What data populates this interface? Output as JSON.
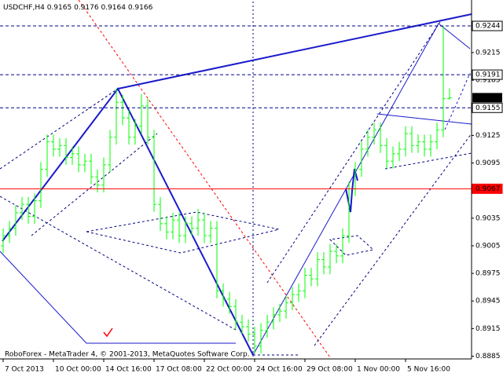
{
  "chart_data": {
    "type": "ohlc",
    "title": "USDCHF,H4",
    "footer": "RoboForex - MetaTrader 4, © 2001-2013, MetaQuotes Software Corp.",
    "color": "#00ff00",
    "open": [
      0.9005,
      0.9016,
      0.9024,
      0.9041,
      0.905,
      0.9037,
      0.9054,
      0.9088,
      0.9118,
      0.911,
      0.9114,
      0.9101,
      0.9105,
      0.9093,
      0.9097,
      0.908,
      0.9071,
      0.9093,
      0.9123,
      0.9161,
      0.9144,
      0.9123,
      0.9135,
      0.9157,
      0.9123,
      0.905,
      0.9029,
      0.902,
      0.9033,
      0.9016,
      0.9029,
      0.9024,
      0.9033,
      0.9016,
      0.9024,
      0.8956,
      0.8947,
      0.8939,
      0.8922,
      0.8917,
      0.8909,
      0.8896,
      0.8913,
      0.8922,
      0.893,
      0.8934,
      0.8943,
      0.8952,
      0.8956,
      0.8973,
      0.8969,
      0.899,
      0.8982,
      0.8999,
      0.8994,
      0.9016,
      0.9067,
      0.9088,
      0.911,
      0.9123,
      0.9131,
      0.9114,
      0.9097,
      0.9105,
      0.911,
      0.9127,
      0.9114,
      0.9118,
      0.911,
      0.9118,
      0.9131,
      0.9165
    ],
    "high": [
      0.9024,
      0.9032,
      0.9049,
      0.9058,
      0.9058,
      0.9062,
      0.9096,
      0.9126,
      0.9126,
      0.9122,
      0.9122,
      0.9113,
      0.9113,
      0.9105,
      0.9105,
      0.9088,
      0.9101,
      0.9131,
      0.9176,
      0.9169,
      0.9152,
      0.9143,
      0.917,
      0.9165,
      0.9131,
      0.9058,
      0.9037,
      0.9041,
      0.9041,
      0.9037,
      0.9037,
      0.9045,
      0.9041,
      0.9032,
      0.9032,
      0.8964,
      0.8955,
      0.8947,
      0.893,
      0.8925,
      0.8917,
      0.8921,
      0.893,
      0.8938,
      0.8942,
      0.8951,
      0.896,
      0.8964,
      0.8981,
      0.8981,
      0.8998,
      0.8998,
      0.9007,
      0.9007,
      0.9024,
      0.9075,
      0.9096,
      0.9118,
      0.9131,
      0.9139,
      0.9139,
      0.9122,
      0.9113,
      0.9118,
      0.9135,
      0.9135,
      0.9126,
      0.9126,
      0.9126,
      0.9139,
      0.9244,
      0.9176
    ],
    "low": [
      0.8997,
      0.9008,
      0.9016,
      0.9033,
      0.9029,
      0.9029,
      0.9046,
      0.908,
      0.9102,
      0.9102,
      0.9093,
      0.9093,
      0.9085,
      0.9085,
      0.9072,
      0.9063,
      0.9063,
      0.9085,
      0.9115,
      0.9136,
      0.9115,
      0.9115,
      0.9127,
      0.9115,
      0.9042,
      0.9021,
      0.9012,
      0.9012,
      0.9008,
      0.9008,
      0.9016,
      0.9016,
      0.9008,
      0.9008,
      0.8948,
      0.8939,
      0.8931,
      0.8914,
      0.8909,
      0.8901,
      0.8888,
      0.8888,
      0.8905,
      0.8914,
      0.8922,
      0.8926,
      0.8935,
      0.8944,
      0.8948,
      0.8961,
      0.8961,
      0.8974,
      0.8974,
      0.8986,
      0.8986,
      0.9008,
      0.9059,
      0.908,
      0.9102,
      0.9115,
      0.9106,
      0.9089,
      0.9089,
      0.9097,
      0.9102,
      0.9106,
      0.9106,
      0.9102,
      0.9102,
      0.911,
      0.9123,
      0.9164
    ],
    "close": [
      0.9016,
      0.9024,
      0.9041,
      0.905,
      0.9037,
      0.9054,
      0.9088,
      0.9118,
      0.911,
      0.9114,
      0.9101,
      0.9105,
      0.9093,
      0.9097,
      0.908,
      0.9071,
      0.9093,
      0.9123,
      0.9161,
      0.9144,
      0.9123,
      0.9135,
      0.9157,
      0.9123,
      0.905,
      0.9029,
      0.902,
      0.9033,
      0.9016,
      0.9029,
      0.9024,
      0.9033,
      0.9016,
      0.9024,
      0.8956,
      0.8947,
      0.8939,
      0.8922,
      0.8917,
      0.8909,
      0.8896,
      0.8913,
      0.8922,
      0.893,
      0.8934,
      0.8943,
      0.8952,
      0.8956,
      0.8973,
      0.8969,
      0.899,
      0.8982,
      0.8999,
      0.8994,
      0.9016,
      0.9067,
      0.9088,
      0.911,
      0.9123,
      0.9131,
      0.9114,
      0.9097,
      0.9105,
      0.911,
      0.9127,
      0.9114,
      0.9118,
      0.911,
      0.9118,
      0.9131,
      0.9165,
      0.9166
    ],
    "xlim": [
      -0.5,
      74.5
    ],
    "xticks": [
      {
        "value": 0,
        "label": "7 Oct 2013"
      },
      {
        "value": 8,
        "label": "10 Oct 00:00"
      },
      {
        "value": 16,
        "label": "14 Oct 16:00"
      },
      {
        "value": 24,
        "label": "17 Oct 08:00"
      },
      {
        "value": 32,
        "label": "22 Oct 00:00"
      },
      {
        "value": 40,
        "label": "24 Oct 16:00"
      },
      {
        "value": 48,
        "label": "29 Oct 08:00"
      },
      {
        "value": 56,
        "label": "1 Nov 00:00"
      },
      {
        "value": 64,
        "label": "5 Nov 16:00"
      }
    ],
    "ylim": [
      0.8882,
      0.92705
    ],
    "yticks": [
      0.9215,
      0.9185,
      0.9125,
      0.9095,
      0.9035,
      0.9005,
      0.8975,
      0.8945,
      0.8915,
      0.8885
    ],
    "levels": [
      {
        "value": 0.9244,
        "color": "#00008b",
        "style": "dashed"
      },
      {
        "value": 0.9191,
        "color": "#00008b",
        "style": "dashed"
      },
      {
        "value": 0.9155,
        "color": "#00008b",
        "style": "dashed"
      },
      {
        "value": 0.9067,
        "color": "#ff0000",
        "style": "solid"
      }
    ]
  }
}
